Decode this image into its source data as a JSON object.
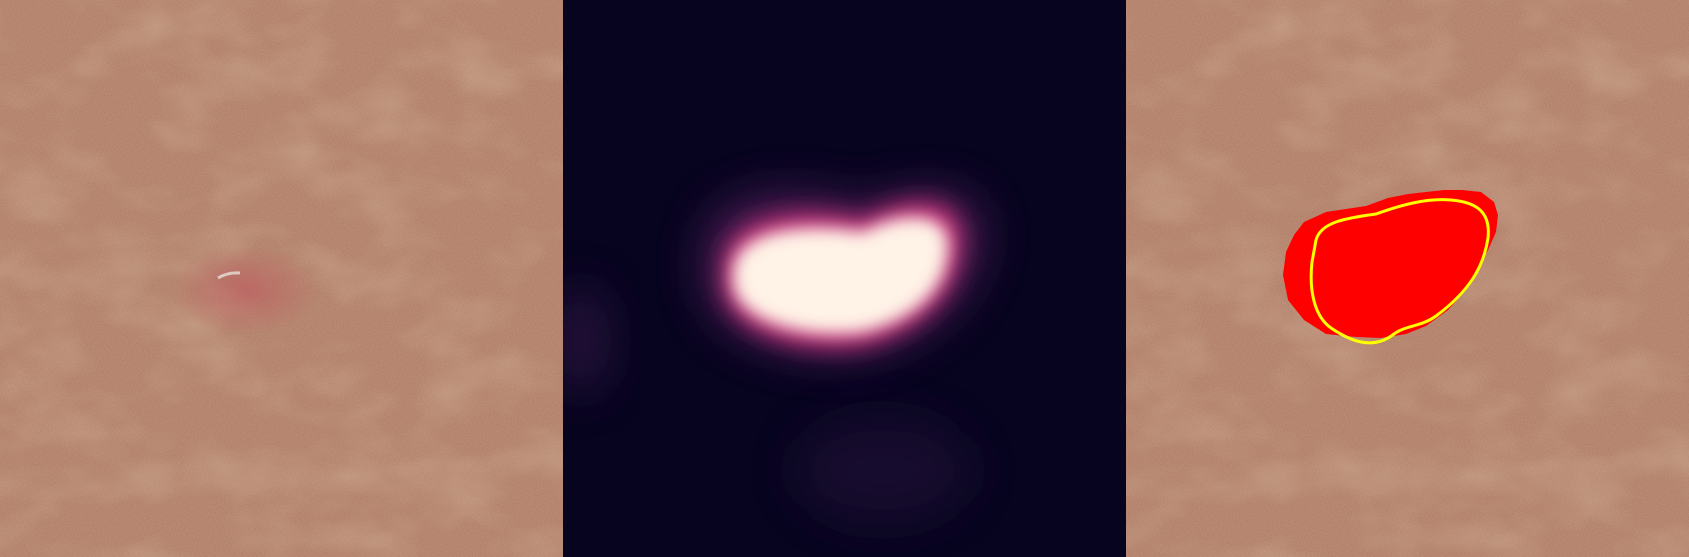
{
  "panels": [
    {
      "role": "original-dermoscopy-image"
    },
    {
      "role": "attention-heatmap"
    },
    {
      "role": "segmentation-overlay"
    }
  ],
  "colors": {
    "skin_base": "#a8725a",
    "skin_dark": "#8a5236",
    "skin_light": "#c08e78",
    "heatmap_background": "#07041f",
    "heatmap_core": "#fff4ea",
    "heatmap_mid": "#f0a07a",
    "heatmap_edge": "#a02a6e",
    "prediction_mask": "#ff0000",
    "ground_truth_contour": "#ffff00"
  }
}
